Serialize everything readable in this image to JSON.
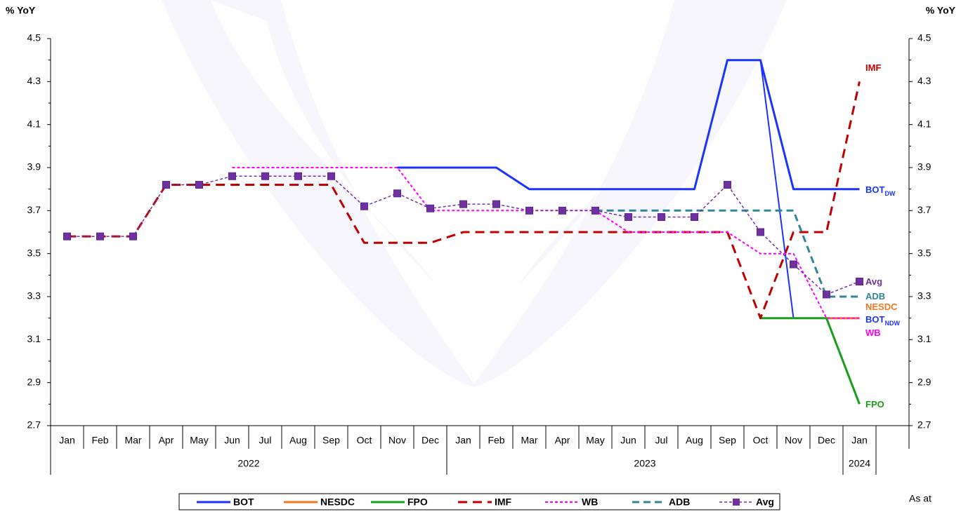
{
  "chart_data": {
    "type": "line",
    "ylabel": "% YoY",
    "y2label": "% YoY",
    "note": "As at",
    "categories": [
      "Jan",
      "Feb",
      "Mar",
      "Apr",
      "May",
      "Jun",
      "Jul",
      "Aug",
      "Sep",
      "Oct",
      "Nov",
      "Dec",
      "Jan",
      "Feb",
      "Mar",
      "Apr",
      "May",
      "Jun",
      "Jul",
      "Aug",
      "Sep",
      "Oct",
      "Nov",
      "Dec",
      "Jan",
      null
    ],
    "category_groups": [
      {
        "label": "2022",
        "count": 12
      },
      {
        "label": "2023",
        "count": 12
      },
      {
        "label": "2024",
        "count": 1
      }
    ],
    "ylim": [
      2.7,
      4.5
    ],
    "yticks": [
      2.7,
      2.9,
      3.1,
      3.3,
      3.5,
      3.7,
      3.9,
      4.1,
      4.3,
      4.5
    ],
    "y2lim": [
      2.7,
      4.5
    ],
    "y2ticks": [
      2.7,
      2.9,
      3.1,
      3.3,
      3.5,
      3.7,
      3.9,
      4.1,
      4.3,
      4.5
    ],
    "series": [
      {
        "name": "BOT",
        "label": "BOT",
        "label_sub": "DW",
        "color": "#1a33ff",
        "dash": "none",
        "width": 3,
        "values": [
          null,
          null,
          null,
          null,
          null,
          null,
          null,
          null,
          null,
          null,
          3.9,
          3.9,
          3.9,
          3.9,
          3.8,
          3.8,
          3.8,
          3.8,
          3.8,
          3.8,
          4.4,
          4.4,
          3.8,
          3.8,
          3.8,
          null
        ]
      },
      {
        "name": "BOT",
        "label": "BOT",
        "label_sub": "NDW",
        "color": "#1a33ff",
        "dash": "none",
        "width": 2,
        "values": [
          null,
          null,
          null,
          null,
          null,
          null,
          null,
          null,
          null,
          null,
          null,
          null,
          null,
          null,
          null,
          null,
          null,
          null,
          null,
          null,
          null,
          4.4,
          3.2,
          null,
          null,
          null
        ]
      },
      {
        "name": "NESDC",
        "label": "NESDC",
        "color": "#f07820",
        "dash": "none",
        "width": 3,
        "values": [
          null,
          null,
          null,
          null,
          null,
          null,
          null,
          null,
          null,
          null,
          null,
          null,
          null,
          null,
          null,
          null,
          null,
          null,
          null,
          null,
          null,
          null,
          null,
          3.2,
          3.2,
          null
        ]
      },
      {
        "name": "FPO",
        "label": "FPO",
        "color": "#1a9e1a",
        "dash": "none",
        "width": 3,
        "values": [
          null,
          null,
          null,
          null,
          null,
          null,
          null,
          null,
          null,
          null,
          null,
          null,
          null,
          null,
          null,
          null,
          null,
          null,
          null,
          null,
          null,
          3.2,
          3.2,
          3.2,
          2.8,
          null
        ]
      },
      {
        "name": "IMF",
        "label": "IMF",
        "color": "#c00000",
        "dash": "13,8",
        "width": 3,
        "values": [
          3.58,
          3.58,
          3.58,
          3.82,
          3.82,
          3.82,
          3.82,
          3.82,
          3.82,
          3.55,
          3.55,
          3.55,
          3.6,
          3.6,
          3.6,
          3.6,
          3.6,
          3.6,
          3.6,
          3.6,
          3.6,
          3.2,
          3.6,
          3.6,
          4.3,
          null
        ]
      },
      {
        "name": "WB",
        "label": "WB",
        "color": "#ff00ff",
        "dash": "4,3",
        "width": 2,
        "values": [
          null,
          null,
          null,
          null,
          null,
          3.9,
          3.9,
          3.9,
          3.9,
          3.9,
          3.9,
          3.7,
          3.7,
          3.7,
          3.7,
          3.7,
          3.7,
          3.6,
          3.6,
          3.6,
          3.6,
          3.5,
          3.5,
          3.2,
          3.2,
          null
        ]
      },
      {
        "name": "ADB",
        "label": "ADB",
        "color": "#31849b",
        "dash": "10,6",
        "width": 3,
        "values": [
          null,
          null,
          null,
          null,
          null,
          null,
          null,
          null,
          null,
          null,
          null,
          null,
          null,
          null,
          null,
          null,
          3.7,
          3.7,
          3.7,
          3.7,
          3.7,
          3.7,
          3.7,
          3.3,
          3.3,
          null
        ]
      },
      {
        "name": "Avg",
        "label": "Avg",
        "color": "#7030a0",
        "dash": "4,3",
        "width": 1.5,
        "marker": "square",
        "values": [
          3.58,
          3.58,
          3.58,
          3.82,
          3.82,
          3.86,
          3.86,
          3.86,
          3.86,
          3.72,
          3.78,
          3.71,
          3.73,
          3.73,
          3.7,
          3.7,
          3.7,
          3.67,
          3.67,
          3.67,
          3.82,
          3.6,
          3.45,
          3.31,
          3.37,
          null
        ]
      }
    ]
  }
}
